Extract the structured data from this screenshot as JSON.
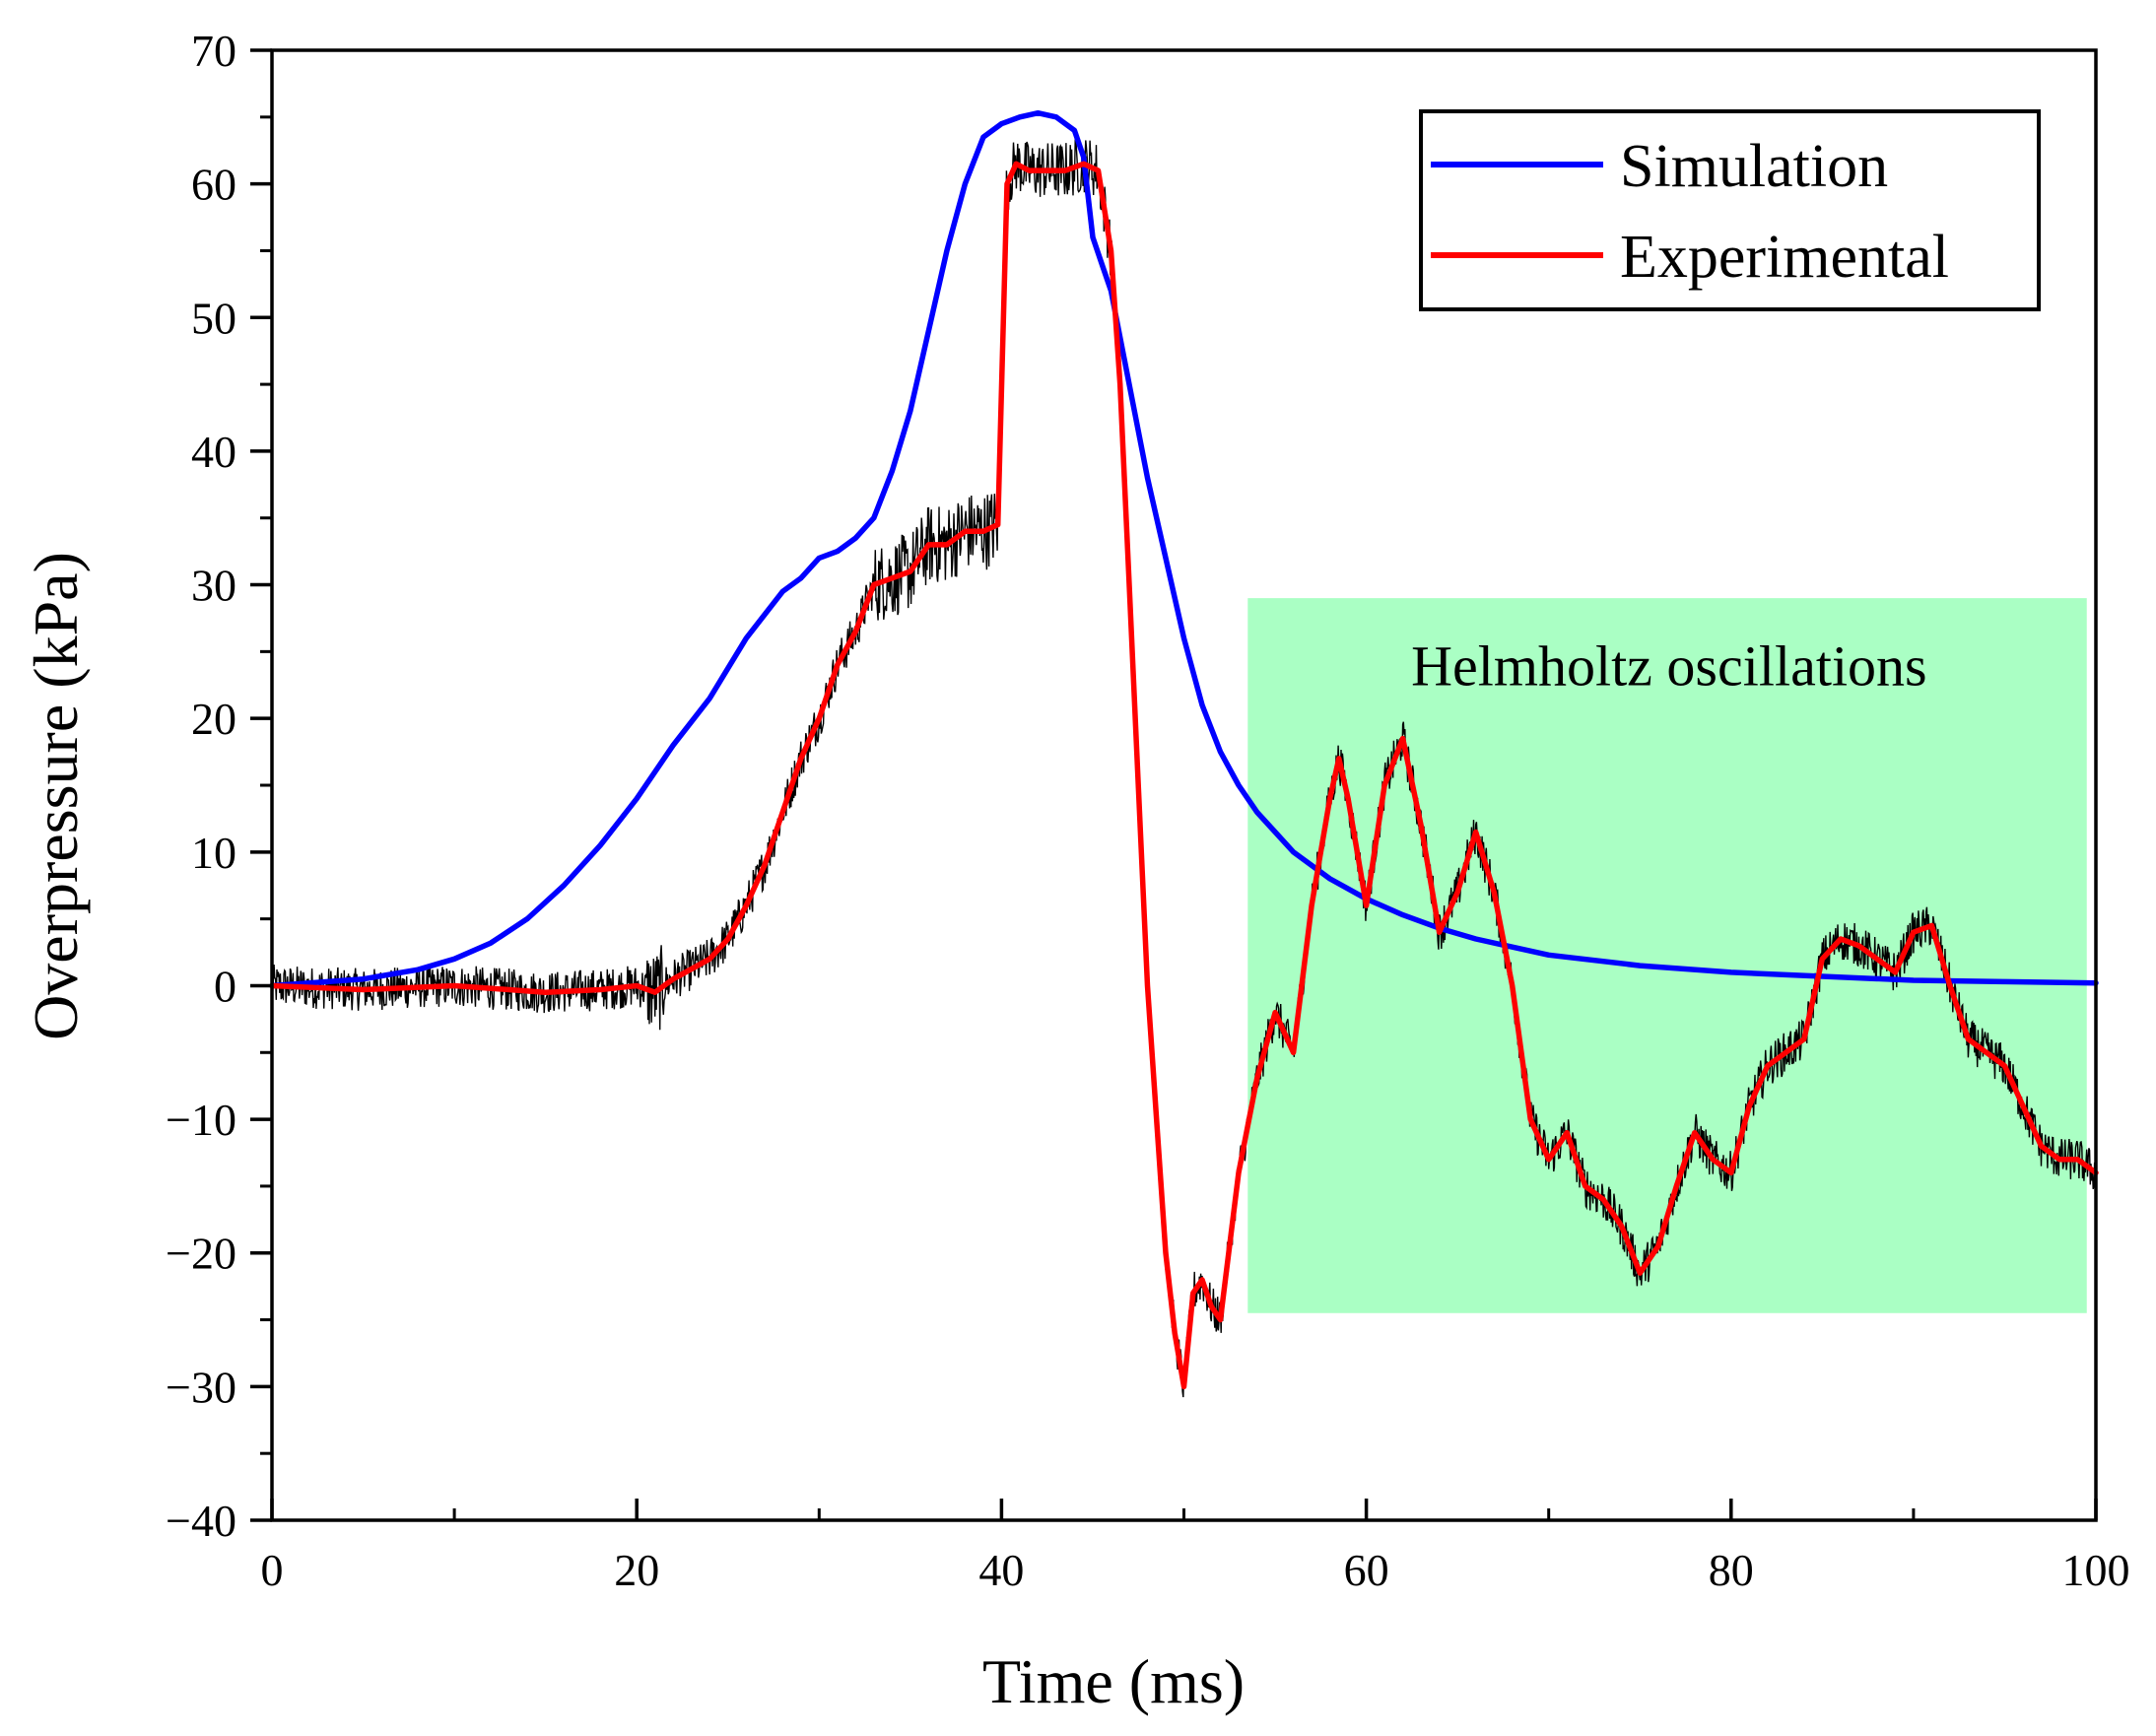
{
  "chart_data": {
    "type": "line",
    "xlabel": "Time (ms)",
    "ylabel": "Overpressure (kPa)",
    "xlim": [
      0,
      100
    ],
    "ylim": [
      -40,
      70
    ],
    "xticks": [
      0,
      20,
      40,
      60,
      80,
      100
    ],
    "yticks": [
      -40,
      -30,
      -20,
      -10,
      0,
      10,
      20,
      30,
      40,
      50,
      60,
      70
    ],
    "grid": false,
    "legend_position": "top-right",
    "colors": {
      "simulation": "#0000ff",
      "experimental": "#ff0000",
      "raw": "#000000",
      "region": "#aaffc4"
    },
    "annotation": {
      "text": "Helmholtz oscillations",
      "x_range": [
        53.5,
        99.5
      ],
      "y_range": [
        -24.5,
        29
      ]
    },
    "series": [
      {
        "name": "Simulation",
        "x": [
          0,
          5,
          8,
          10,
          12,
          14,
          16,
          18,
          20,
          22,
          24,
          26,
          28,
          29,
          30,
          31,
          32,
          33,
          34,
          35,
          36,
          37,
          38,
          39,
          40,
          41,
          42,
          43,
          44,
          44.5,
          45,
          45.5,
          46,
          47,
          48,
          49,
          50,
          51,
          52,
          53,
          54,
          55,
          56,
          58,
          60,
          62,
          64,
          66,
          70,
          75,
          80,
          85,
          90,
          95,
          100
        ],
        "y": [
          0,
          0.5,
          1.2,
          2,
          3.2,
          5,
          7.5,
          10.5,
          14,
          18,
          21.5,
          26,
          29.5,
          30.5,
          32,
          32.5,
          33.5,
          35,
          38.5,
          43,
          49,
          55,
          60,
          63.5,
          64.5,
          65,
          65.3,
          65,
          64,
          62,
          56,
          54,
          52,
          45,
          38,
          32,
          26,
          21,
          17.5,
          15,
          13,
          11.5,
          10,
          8,
          6.5,
          5.3,
          4.3,
          3.5,
          2.3,
          1.5,
          1.0,
          0.7,
          0.4,
          0.3,
          0.2
        ]
      },
      {
        "name": "Experimental",
        "x": [
          0,
          5,
          10,
          15,
          18,
          20,
          21,
          22,
          24,
          25,
          26,
          27,
          28,
          29,
          30,
          31,
          32,
          33,
          34,
          35,
          36,
          37,
          38,
          39,
          39.8,
          40.3,
          40.8,
          41.5,
          42.5,
          43.5,
          44.5,
          45.3,
          46,
          46.5,
          47,
          47.5,
          48,
          48.5,
          49,
          49.5,
          50,
          50.5,
          51,
          51.5,
          52,
          53,
          54,
          55,
          56,
          57,
          58,
          58.5,
          59,
          60,
          61,
          62,
          63,
          64,
          65,
          66,
          67,
          68,
          69,
          70,
          71,
          72,
          73,
          74,
          75,
          76,
          77,
          78,
          79,
          80,
          81,
          82,
          83,
          84,
          85,
          86,
          87,
          88,
          89,
          90,
          91,
          92,
          93,
          94,
          95,
          96,
          97,
          98,
          99,
          100
        ],
        "y": [
          0,
          -0.3,
          0,
          -0.5,
          -0.3,
          0,
          -0.5,
          0.5,
          2,
          3.5,
          6,
          9,
          13,
          17,
          20,
          24,
          26.5,
          30,
          30.5,
          31,
          33,
          33,
          34,
          34,
          34.5,
          60,
          61.5,
          61,
          61,
          61,
          61.5,
          61,
          55,
          45,
          30,
          15,
          0,
          -10,
          -20,
          -26,
          -30,
          -23,
          -22,
          -24,
          -25,
          -14,
          -7,
          -2,
          -5,
          6,
          14,
          17,
          14,
          6,
          15,
          18.5,
          12,
          4,
          7,
          11.5,
          7,
          0,
          -10,
          -13,
          -11,
          -15,
          -16,
          -18,
          -21.5,
          -19.5,
          -15,
          -11,
          -13,
          -14,
          -9,
          -6,
          -5,
          -4,
          2,
          3.5,
          3,
          2,
          1,
          4,
          4.5,
          0,
          -4,
          -5,
          -6,
          -9,
          -12,
          -13,
          -13,
          -14
        ]
      }
    ]
  },
  "legend": {
    "items": [
      {
        "label": "Simulation",
        "color": "#0000ff"
      },
      {
        "label": "Experimental",
        "color": "#ff0000"
      }
    ]
  }
}
